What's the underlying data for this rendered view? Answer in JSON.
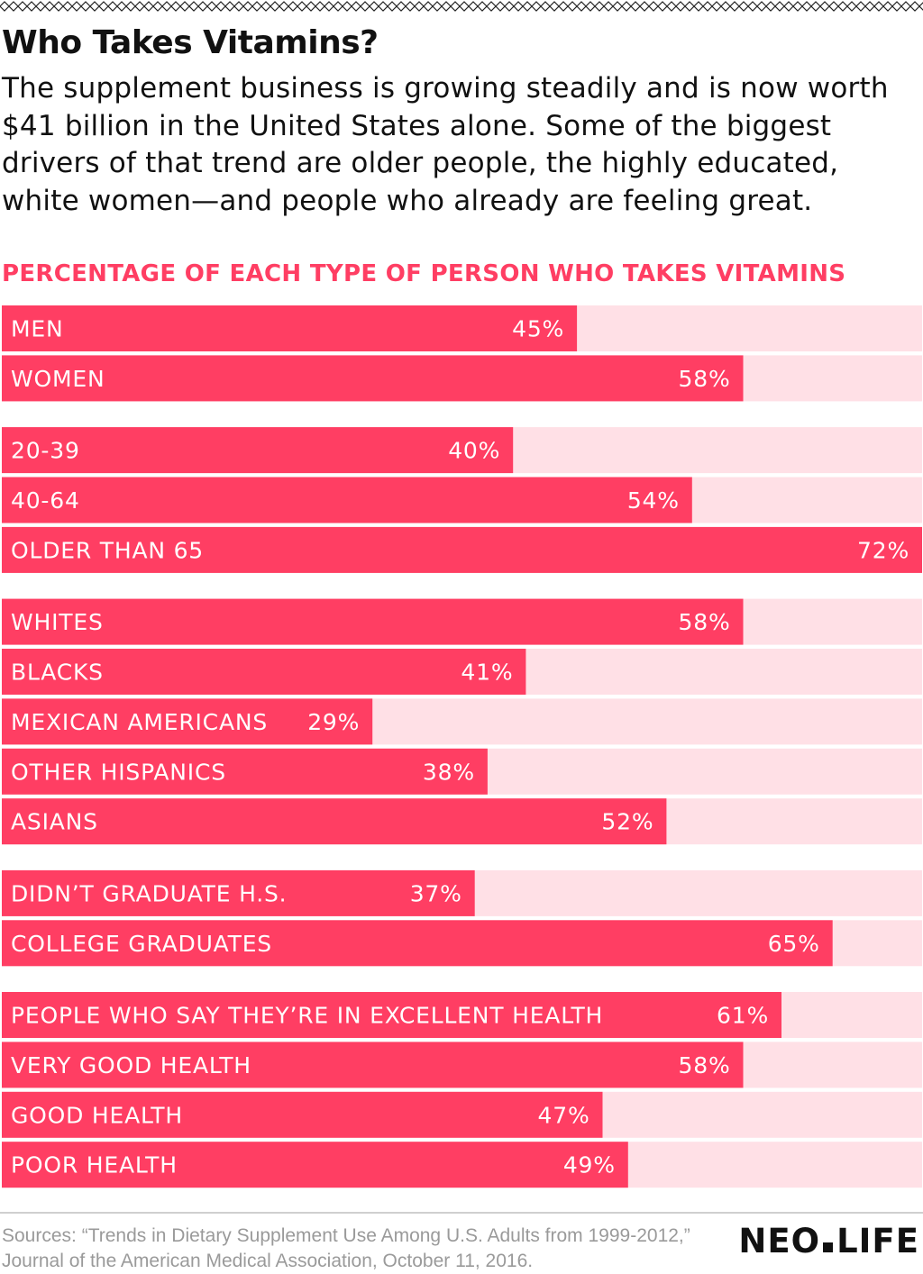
{
  "header": {
    "title": "Who Takes Vitamins?",
    "subtitle": "The supplement business is growing steadily and is now worth $41 billion in the United States alone. Some of the biggest drivers of that trend are older people, the highly educated, white women—and people who already are feeling great."
  },
  "colors": {
    "bar": "#ff3e63",
    "track": "#ffe0e6",
    "heading": "#ff3e63",
    "label": "#ffffff"
  },
  "chart_data": {
    "type": "bar",
    "orientation": "horizontal",
    "title": "PERCENTAGE OF EACH TYPE OF PERSON WHO TAKES VITAMINS",
    "unit": "%",
    "xlim": [
      0,
      72
    ],
    "grid": false,
    "groups": [
      {
        "items": [
          {
            "label": "MEN",
            "value": 45,
            "value_label": "45%"
          },
          {
            "label": "WOMEN",
            "value": 58,
            "value_label": "58%"
          }
        ]
      },
      {
        "items": [
          {
            "label": "20-39",
            "value": 40,
            "value_label": "40%"
          },
          {
            "label": "40-64",
            "value": 54,
            "value_label": "54%"
          },
          {
            "label": "OLDER THAN 65",
            "value": 72,
            "value_label": "72%"
          }
        ]
      },
      {
        "items": [
          {
            "label": "WHITES",
            "value": 58,
            "value_label": "58%"
          },
          {
            "label": "BLACKS",
            "value": 41,
            "value_label": "41%"
          },
          {
            "label": "MEXICAN AMERICANS",
            "value": 29,
            "value_label": "29%"
          },
          {
            "label": "OTHER HISPANICS",
            "value": 38,
            "value_label": "38%"
          },
          {
            "label": "ASIANS",
            "value": 52,
            "value_label": "52%"
          }
        ]
      },
      {
        "items": [
          {
            "label": "DIDN’T GRADUATE H.S.",
            "value": 37,
            "value_label": "37%"
          },
          {
            "label": "COLLEGE GRADUATES",
            "value": 65,
            "value_label": "65%"
          }
        ]
      },
      {
        "items": [
          {
            "label": "PEOPLE WHO SAY THEY’RE IN EXCELLENT HEALTH",
            "value": 61,
            "value_label": "61%"
          },
          {
            "label": "VERY GOOD HEALTH",
            "value": 58,
            "value_label": "58%"
          },
          {
            "label": "GOOD HEALTH",
            "value": 47,
            "value_label": "47%"
          },
          {
            "label": "POOR HEALTH",
            "value": 49,
            "value_label": "49%"
          }
        ]
      }
    ]
  },
  "footer": {
    "sources": "Sources: “Trends in Dietary Supplement Use Among U.S. Adults from 1999-2012,” Journal of the American Medical Association, October 11, 2016.",
    "logo_left": "NEO",
    "logo_right": "LIFE"
  }
}
